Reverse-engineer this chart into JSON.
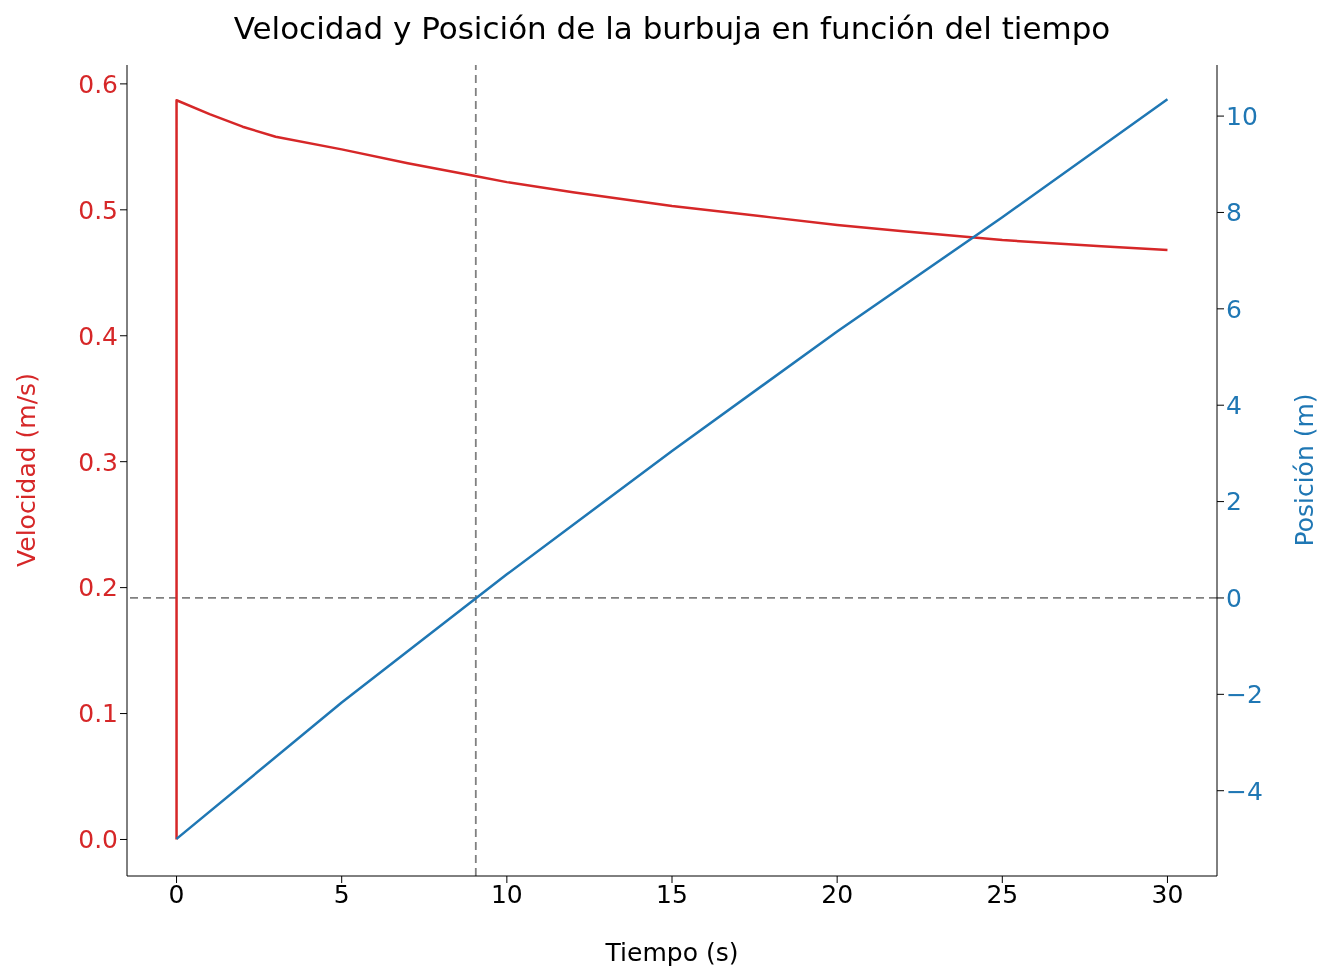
{
  "chart_data": {
    "type": "line",
    "title": "Velocidad y Posición de la burbuja en función del tiempo",
    "xlabel": "Tiempo (s)",
    "ylabel": "Velocidad (m/s)",
    "y2label": "Posición (m)",
    "xlim": [
      -1.5,
      31.5
    ],
    "xticks": [
      0,
      5,
      10,
      15,
      20,
      25,
      30
    ],
    "ylim": [
      -0.029,
      0.615
    ],
    "yticks": [
      {
        "value": 0,
        "label": "0.0"
      },
      0.1,
      0.2,
      0.3,
      0.4,
      0.5,
      0.6
    ],
    "y2lim": [
      -5.77,
      11.06
    ],
    "y2ticks": [
      {
        "value": -4,
        "label": "−4"
      },
      {
        "value": -2,
        "label": "−2"
      },
      0,
      2,
      4,
      6,
      8,
      10
    ],
    "series": [
      {
        "axis": "y",
        "color": "#d62728",
        "x": [
          0,
          0,
          1,
          2,
          3,
          5,
          7,
          9,
          10,
          12,
          15,
          18,
          20,
          22,
          25,
          28,
          30
        ],
        "values": [
          0,
          0.587,
          0.576,
          0.566,
          0.558,
          0.548,
          0.537,
          0.527,
          0.522,
          0.514,
          0.503,
          0.494,
          0.488,
          0.483,
          0.476,
          0.471,
          0.468
        ]
      },
      {
        "axis": "y2",
        "color": "#1f77b4",
        "x": [
          0,
          5,
          10,
          15,
          20,
          25,
          30
        ],
        "values": [
          -5,
          -2.17,
          0.49,
          3.05,
          5.53,
          7.9,
          10.35
        ]
      }
    ],
    "ref_lines": [
      {
        "axis": "x",
        "value": 9.06,
        "color": "#808080",
        "line_style": "dashed"
      },
      {
        "axis": "y2",
        "value": 0,
        "color": "#808080",
        "line_style": "dashed"
      }
    ],
    "marker": "none",
    "line_style": "solid"
  }
}
